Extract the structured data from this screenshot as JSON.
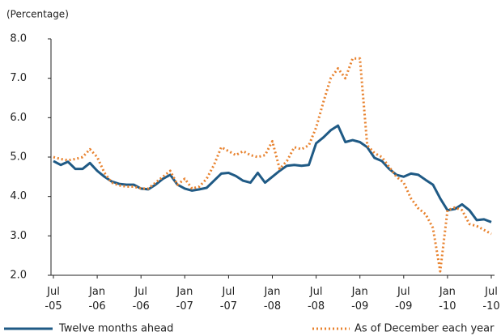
{
  "chart_data": {
    "type": "line",
    "y_axis_label": "(Percentage)",
    "categories": [
      "Jul -05",
      null,
      null,
      null,
      null,
      null,
      "Jan -06",
      null,
      null,
      null,
      null,
      null,
      "Jul -06",
      null,
      null,
      null,
      null,
      null,
      "Jan -07",
      null,
      null,
      null,
      null,
      null,
      "Jul -07",
      null,
      null,
      null,
      null,
      null,
      "Jan -08",
      null,
      null,
      null,
      null,
      null,
      "Jul -08",
      null,
      null,
      null,
      null,
      null,
      "Jan -09",
      null,
      null,
      null,
      null,
      null,
      "Jul -09",
      null,
      null,
      null,
      null,
      null,
      "Jan -10",
      null,
      null,
      null,
      null,
      null,
      "Jul -10"
    ],
    "series": [
      {
        "name": "Twelve months ahead",
        "color": "#1f5a85",
        "style": "solid",
        "values": [
          4.9,
          4.8,
          4.88,
          4.7,
          4.7,
          4.85,
          4.65,
          4.5,
          4.38,
          4.32,
          4.3,
          4.3,
          4.2,
          4.18,
          4.3,
          4.45,
          4.55,
          4.3,
          4.2,
          4.15,
          4.18,
          4.22,
          4.4,
          4.58,
          4.6,
          4.52,
          4.4,
          4.35,
          4.6,
          4.35,
          4.5,
          4.65,
          4.78,
          4.8,
          4.78,
          4.8,
          5.35,
          5.5,
          5.68,
          5.8,
          5.38,
          5.43,
          5.38,
          5.25,
          4.98,
          4.9,
          4.7,
          4.55,
          4.5,
          4.58,
          4.55,
          4.42,
          4.3,
          3.95,
          3.65,
          3.68,
          3.8,
          3.65,
          3.4,
          3.42,
          3.35
        ]
      },
      {
        "name": "As of December each year",
        "color": "#e8822e",
        "style": "dotted",
        "values": [
          5.0,
          4.95,
          4.92,
          4.95,
          5.0,
          5.2,
          5.0,
          4.6,
          4.35,
          4.28,
          4.25,
          4.25,
          4.2,
          4.2,
          4.35,
          4.5,
          4.65,
          4.3,
          4.45,
          4.2,
          4.25,
          4.45,
          4.8,
          5.25,
          5.15,
          5.05,
          5.15,
          5.05,
          5.0,
          5.05,
          5.4,
          4.7,
          4.9,
          5.25,
          5.2,
          5.3,
          5.75,
          6.4,
          7.0,
          7.25,
          7.0,
          7.5,
          7.5,
          5.3,
          5.1,
          5.0,
          4.75,
          4.5,
          4.35,
          3.95,
          3.7,
          3.55,
          3.2,
          2.1,
          3.65,
          3.72,
          3.65,
          3.3,
          3.25,
          3.15,
          3.05
        ]
      }
    ],
    "ylim": [
      2,
      8
    ],
    "yticks": [
      {
        "value": 2,
        "label": "2.0"
      },
      {
        "value": 3,
        "label": "3.0"
      },
      {
        "value": 4,
        "label": "4.0"
      },
      {
        "value": 5,
        "label": "5.0"
      },
      {
        "value": 6,
        "label": "6.0"
      },
      {
        "value": 7,
        "label": "7.0"
      },
      {
        "value": 8,
        "label": "8.0"
      }
    ],
    "grid": false
  }
}
